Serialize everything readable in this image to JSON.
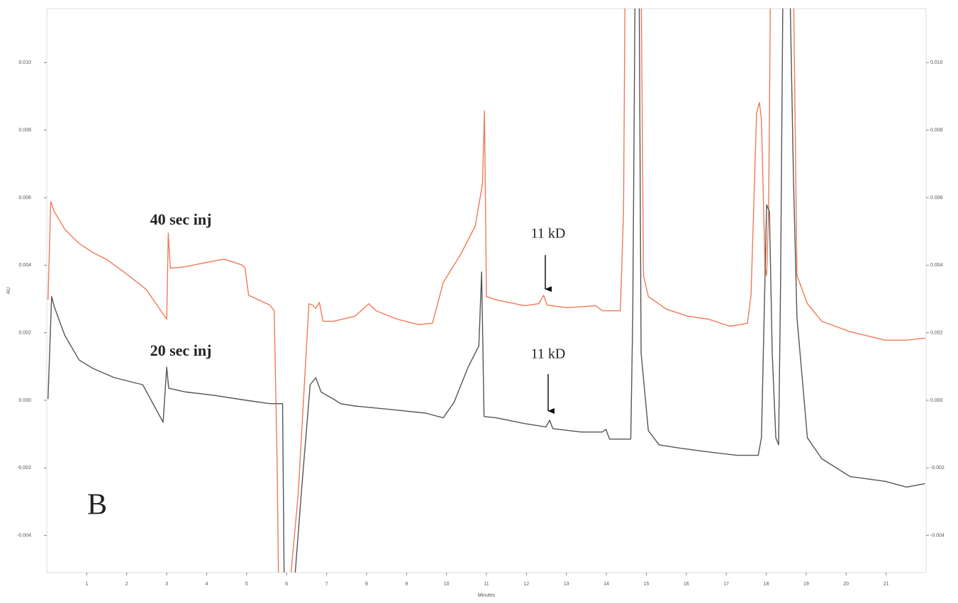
{
  "chart_data": {
    "type": "line",
    "xlabel": "Minutes",
    "ylabel": "AU",
    "xlim": [
      0,
      22
    ],
    "xticks": [
      1,
      2,
      3,
      4,
      5,
      6,
      7,
      8,
      9,
      10,
      11,
      12,
      13,
      14,
      15,
      16,
      17,
      18,
      19,
      20,
      21
    ],
    "ylim": [
      -0.0051,
      0.0116
    ],
    "yticks": [
      {
        "value": -0.004,
        "label": "-0.004"
      },
      -0.002,
      {
        "value": 0,
        "label": "0.000"
      },
      0.002,
      0.004,
      0.006,
      0.008,
      {
        "value": 0.01,
        "label": "0.010"
      }
    ],
    "annotations": [
      "11 kD",
      "11 kD",
      "B"
    ],
    "series": [
      {
        "name": "40 sec inj",
        "color": "#f07a55",
        "x": [
          0.03,
          0.1,
          0.19,
          0.45,
          0.81,
          1.16,
          1.51,
          2.04,
          2.49,
          3.0,
          3.04,
          3.09,
          3.45,
          3.99,
          4.43,
          4.88,
          4.96,
          5.05,
          5.58,
          5.69,
          5.76,
          5.8,
          6.08,
          6.29,
          6.56,
          6.65,
          6.73,
          6.82,
          6.91,
          7.17,
          7.71,
          8.06,
          8.24,
          8.77,
          9.3,
          9.65,
          9.92,
          10.36,
          10.72,
          10.9,
          10.95,
          11.0,
          11.25,
          11.96,
          12.31,
          12.43,
          12.52,
          13.02,
          13.73,
          13.9,
          14.35,
          14.43,
          14.47,
          14.87,
          14.93,
          15.05,
          15.5,
          16.03,
          16.56,
          17.09,
          17.53,
          17.62,
          17.76,
          17.83,
          17.88,
          17.97,
          18.01,
          18.06,
          18.11,
          18.68,
          18.77,
          19.03,
          19.39,
          20.1,
          20.98,
          21.51,
          21.97
        ],
        "values": [
          0.00297,
          0.00589,
          0.00558,
          0.00506,
          0.00464,
          0.00437,
          0.00416,
          0.0037,
          0.00328,
          0.0024,
          0.00495,
          0.00391,
          0.00395,
          0.00408,
          0.00418,
          0.00401,
          0.00391,
          0.00311,
          0.00282,
          0.00265,
          -0.00173,
          -0.0055,
          -0.0055,
          -0.00278,
          0.00286,
          0.00282,
          0.00272,
          0.0029,
          0.00234,
          0.00234,
          0.00249,
          0.00286,
          0.00265,
          0.0024,
          0.00224,
          0.00228,
          0.00349,
          0.00433,
          0.00516,
          0.00641,
          0.00857,
          0.00307,
          0.00297,
          0.0028,
          0.00286,
          0.00311,
          0.00282,
          0.00274,
          0.0028,
          0.00265,
          0.00265,
          0.00558,
          0.0125,
          0.0125,
          0.0037,
          0.00307,
          0.0027,
          0.00249,
          0.0024,
          0.00219,
          0.00228,
          0.00311,
          0.00851,
          0.00882,
          0.0083,
          0.00391,
          0.0037,
          0.00558,
          0.0125,
          0.0125,
          0.0037,
          0.00286,
          0.00234,
          0.00203,
          0.00178,
          0.00178,
          0.00184
        ]
      },
      {
        "name": "20 sec inj",
        "color": "#555555",
        "x": [
          0.03,
          0.12,
          0.19,
          0.45,
          0.81,
          1.16,
          1.69,
          2.4,
          2.91,
          3.0,
          3.05,
          3.45,
          4.17,
          4.88,
          5.58,
          5.9,
          5.94,
          6.19,
          6.38,
          6.59,
          6.73,
          6.86,
          7.0,
          7.17,
          7.35,
          7.71,
          8.59,
          9.48,
          9.92,
          10.19,
          10.54,
          10.81,
          10.88,
          10.94,
          11.25,
          11.96,
          12.49,
          12.58,
          12.66,
          13.37,
          13.9,
          13.99,
          14.08,
          14.61,
          14.66,
          14.72,
          14.82,
          14.87,
          15.05,
          15.32,
          15.85,
          16.56,
          17.27,
          17.8,
          17.88,
          18.01,
          18.08,
          18.15,
          18.24,
          18.31,
          18.36,
          18.42,
          18.59,
          18.68,
          18.77,
          19.03,
          19.39,
          20.1,
          20.98,
          21.51,
          21.97
        ],
        "values": [
          4e-05,
          0.00307,
          0.00276,
          0.00192,
          0.00119,
          0.00094,
          0.00067,
          0.00046,
          -0.00065,
          0.00098,
          0.00036,
          0.00025,
          0.00015,
          2e-05,
          -0.0001,
          -0.0001,
          -0.0055,
          -0.0055,
          -0.00257,
          0.00046,
          0.00067,
          0.00025,
          0.00015,
          4e-05,
          -0.0001,
          -0.00017,
          -0.00027,
          -0.00038,
          -0.00052,
          -6e-05,
          0.00098,
          0.00161,
          0.0038,
          -0.00048,
          -0.00052,
          -0.00069,
          -0.00079,
          -0.00059,
          -0.00084,
          -0.00094,
          -0.00094,
          -0.00086,
          -0.00115,
          -0.00115,
          0.00245,
          0.0125,
          0.0125,
          0.0014,
          -0.0009,
          -0.00132,
          -0.00142,
          -0.00153,
          -0.00163,
          -0.00163,
          -0.00111,
          0.00579,
          0.00558,
          0.0014,
          -0.00111,
          -0.00132,
          0.00349,
          0.0125,
          0.0125,
          0.00662,
          0.00245,
          -0.00111,
          -0.00173,
          -0.00226,
          -0.0024,
          -0.00257,
          -0.00247
        ]
      }
    ]
  }
}
